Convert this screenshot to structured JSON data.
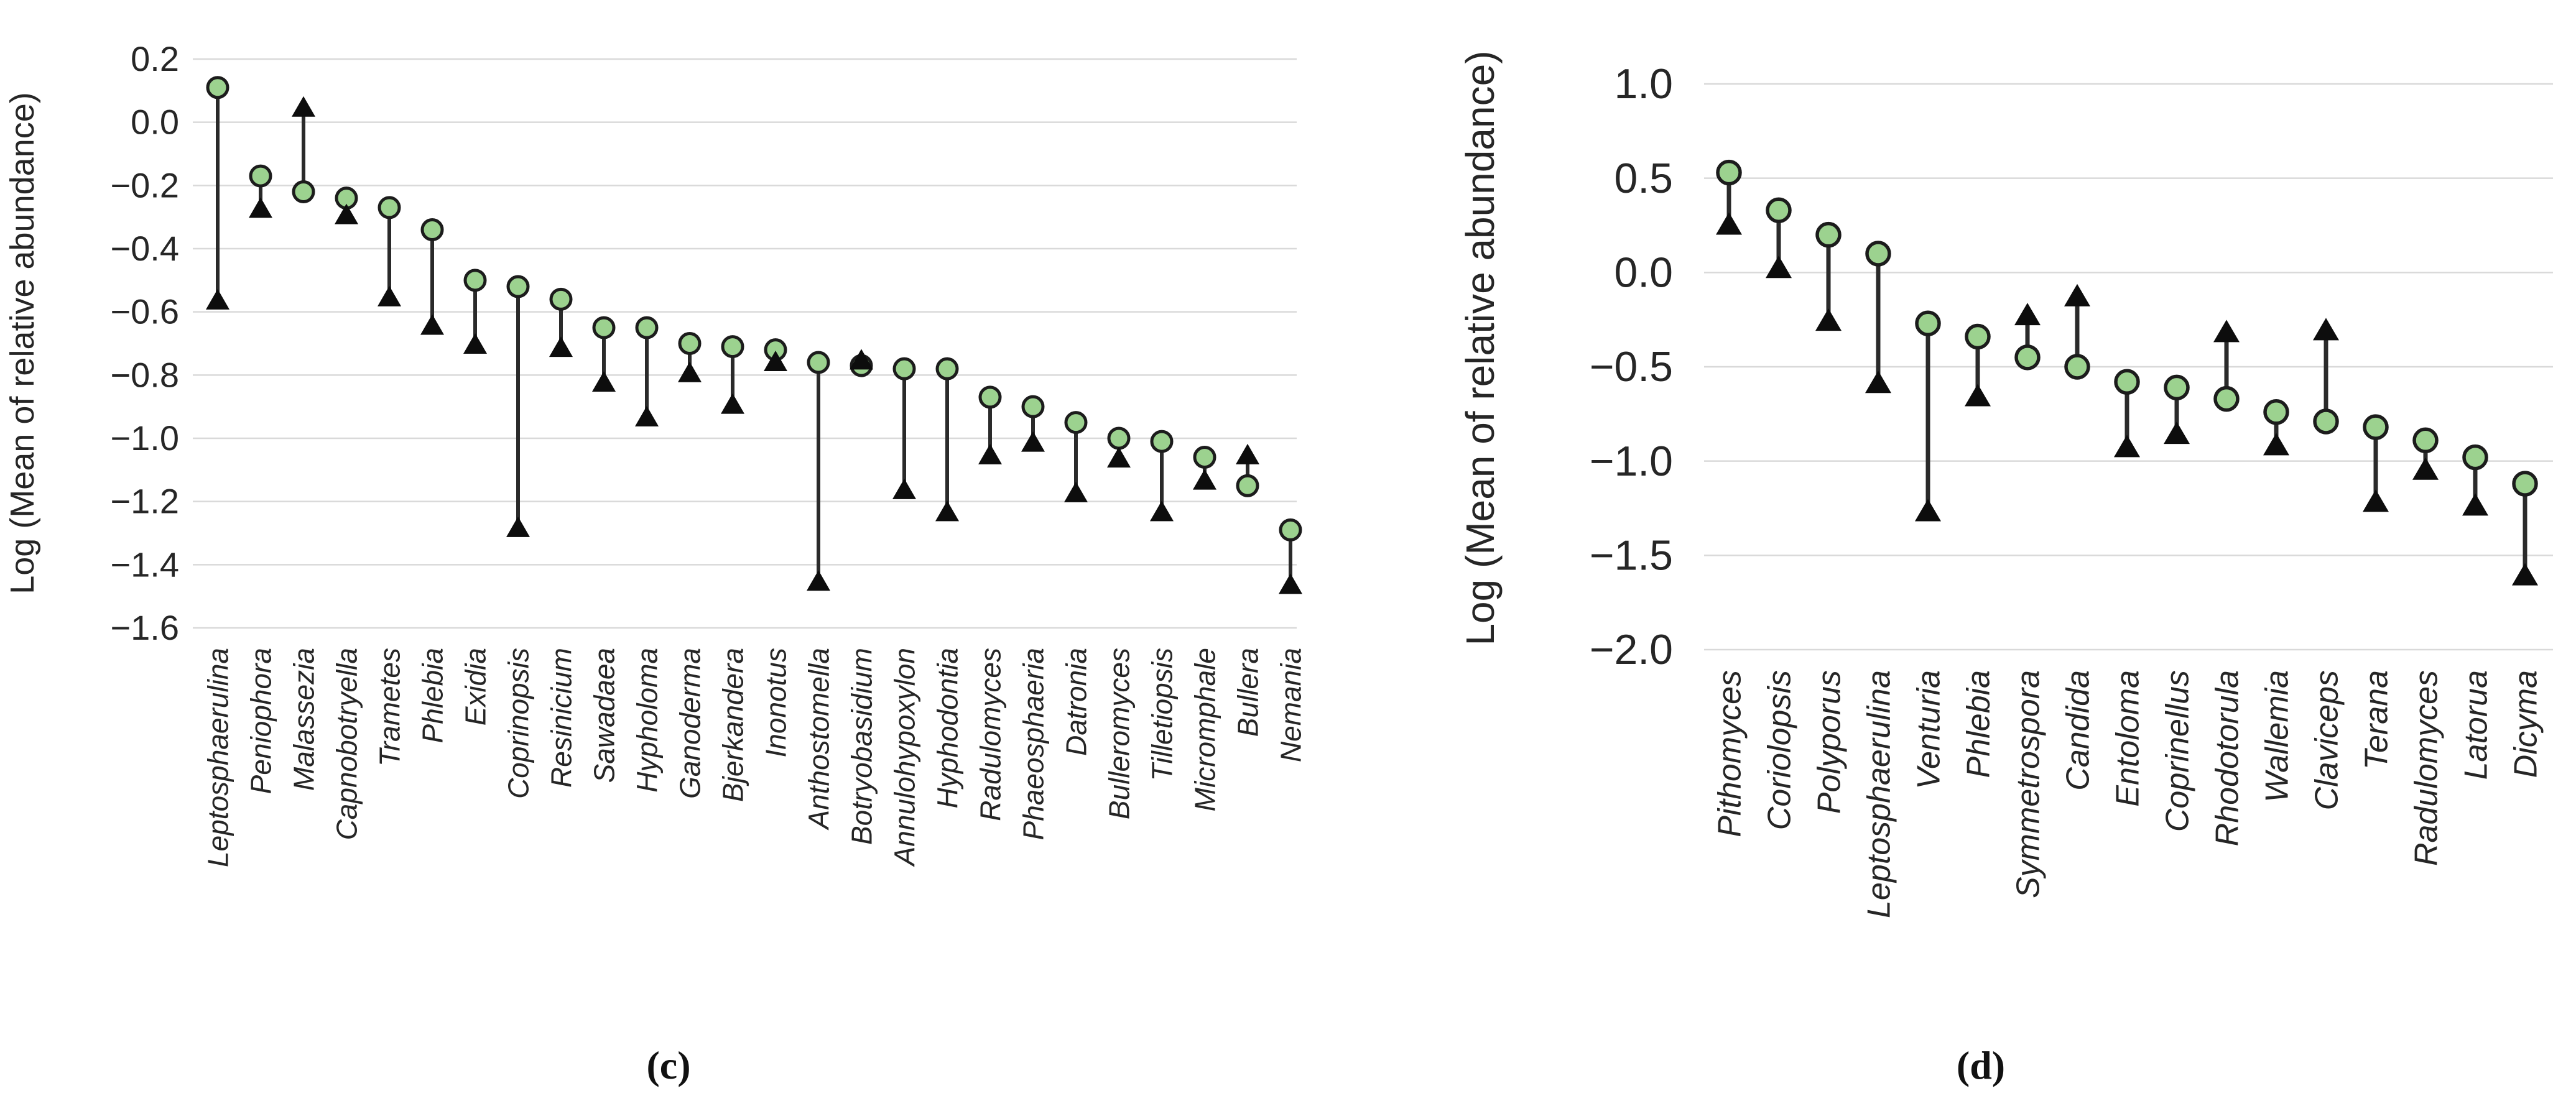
{
  "figure": {
    "background": "#ffffff",
    "panel_c_caption": "(c)",
    "panel_d_caption": "(d)"
  },
  "colors": {
    "circle_fill": "#9cd28f",
    "circle_stroke": "#1c1c1c",
    "triangle_fill": "#0d0d0d",
    "connector_line": "#2a2a2a",
    "gridline": "#d9d9d9",
    "text": "#262626"
  },
  "marker_legend": {
    "circle_marker": "green-circle",
    "triangle_marker": "black-up-triangle"
  },
  "chart_data": [
    {
      "id": "c",
      "type": "scatter",
      "subtype": "dumbbell-range-plot",
      "caption": "(c)",
      "title": "",
      "xlabel": "",
      "ylabel": "Log (Mean of relative abundance)",
      "grid": true,
      "legend_position": "none",
      "ylim": [
        -1.6,
        0.2
      ],
      "ytick_labels": [
        "0.2",
        "0.0",
        "−0.2",
        "−0.4",
        "−0.6",
        "−0.8",
        "−1.0",
        "−1.2",
        "−1.4",
        "−1.6"
      ],
      "yticks": [
        0.2,
        0.0,
        -0.2,
        -0.4,
        -0.6,
        -0.8,
        -1.0,
        -1.2,
        -1.4,
        -1.6
      ],
      "categories": [
        "Leptosphaerulina",
        "Peniophora",
        "Malassezia",
        "Capnobotryella",
        "Trametes",
        "Phlebia",
        "Exidia",
        "Coprinopsis",
        "Resinicium",
        "Sawadaea",
        "Hypholoma",
        "Ganoderma",
        "Bjerkandera",
        "Inonotus",
        "Anthostomella",
        "Botryobasidium",
        "Annulohypoxylon",
        "Hyphodontia",
        "Radulomyces",
        "Phaeosphaeria",
        "Datronia",
        "Bulleromyces",
        "Tilletiopsis",
        "Micromphale",
        "Bullera",
        "Nemania"
      ],
      "series": [
        {
          "name": "circle",
          "marker": "circle",
          "values": [
            0.11,
            -0.17,
            -0.22,
            -0.24,
            -0.27,
            -0.34,
            -0.5,
            -0.52,
            -0.56,
            -0.65,
            -0.65,
            -0.7,
            -0.71,
            -0.72,
            -0.76,
            -0.77,
            -0.78,
            -0.78,
            -0.87,
            -0.9,
            -0.95,
            -1.0,
            -1.01,
            -1.06,
            -1.15,
            -1.29
          ]
        },
        {
          "name": "triangle",
          "marker": "triangle-up",
          "values": [
            -0.56,
            -0.27,
            0.05,
            -0.29,
            -0.55,
            -0.64,
            -0.7,
            -1.28,
            -0.71,
            -0.82,
            -0.93,
            -0.79,
            -0.89,
            -0.755,
            -1.45,
            -0.75,
            -1.16,
            -1.23,
            -1.05,
            -1.01,
            -1.17,
            -1.06,
            -1.23,
            -1.13,
            -1.05,
            -1.46
          ]
        }
      ]
    },
    {
      "id": "d",
      "type": "scatter",
      "subtype": "dumbbell-range-plot",
      "caption": "(d)",
      "title": "",
      "xlabel": "",
      "ylabel": "Log (Mean of relative abundance)",
      "grid": true,
      "legend_position": "none",
      "ylim": [
        -2.0,
        1.0
      ],
      "ytick_labels": [
        "1.0",
        "0.5",
        "0.0",
        "−0.5",
        "−1.0",
        "−1.5",
        "−2.0"
      ],
      "yticks": [
        1.0,
        0.5,
        0.0,
        -0.5,
        -1.0,
        -1.5,
        -2.0
      ],
      "categories": [
        "Pithomyces",
        "Coriolopsis",
        "Polyporus",
        "Leptosphaerulina",
        "Venturia",
        "Phlebia",
        "Symmetrospora",
        "Candida",
        "Entoloma",
        "Coprinellus",
        "Rhodotorula",
        "Wallemia",
        "Claviceps",
        "Terana",
        "Radulomyces",
        "Latorua",
        "Dicyma"
      ],
      "series": [
        {
          "name": "circle",
          "marker": "circle",
          "values": [
            0.53,
            0.33,
            0.2,
            0.1,
            -0.27,
            -0.34,
            -0.45,
            -0.5,
            -0.58,
            -0.61,
            -0.67,
            -0.74,
            -0.79,
            -0.82,
            -0.89,
            -0.98,
            -1.12
          ]
        },
        {
          "name": "triangle",
          "marker": "triangle-up",
          "values": [
            0.26,
            0.03,
            -0.25,
            -0.58,
            -1.26,
            -0.65,
            -0.22,
            -0.12,
            -0.92,
            -0.85,
            -0.31,
            -0.91,
            -0.3,
            -1.21,
            -1.04,
            -1.23,
            -1.6
          ]
        }
      ]
    }
  ]
}
